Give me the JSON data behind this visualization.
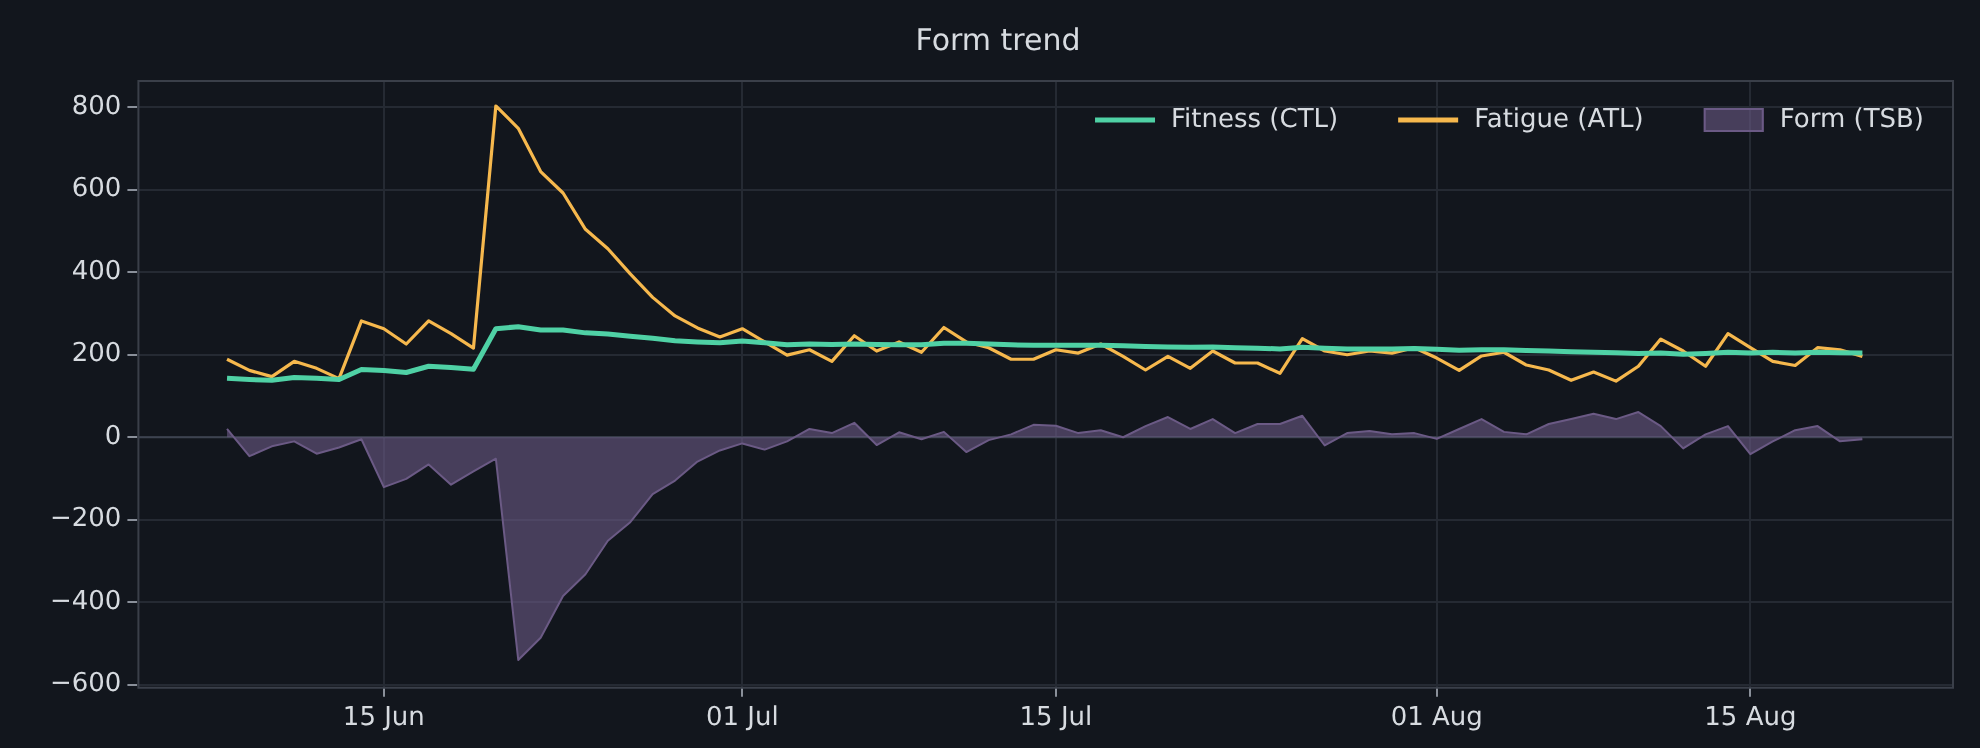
{
  "chart_data": {
    "type": "line",
    "title": "Form trend",
    "x": [
      "--06-08",
      "--06-09",
      "--06-10",
      "--06-11",
      "--06-12",
      "--06-13",
      "--06-14",
      "--06-15",
      "--06-16",
      "--06-17",
      "--06-18",
      "--06-19",
      "--06-20",
      "--06-21",
      "--06-22",
      "--06-23",
      "--06-24",
      "--06-25",
      "--06-26",
      "--06-27",
      "--06-28",
      "--06-29",
      "--06-30",
      "--07-01",
      "--07-02",
      "--07-03",
      "--07-04",
      "--07-05",
      "--07-06",
      "--07-07",
      "--07-08",
      "--07-09",
      "--07-10",
      "--07-11",
      "--07-12",
      "--07-13",
      "--07-14",
      "--07-15",
      "--07-16",
      "--07-17",
      "--07-18",
      "--07-19",
      "--07-20",
      "--07-21",
      "--07-22",
      "--07-23",
      "--07-24",
      "--07-25",
      "--07-26",
      "--07-27",
      "--07-28",
      "--07-29",
      "--07-30",
      "--07-31",
      "--08-01",
      "--08-02",
      "--08-03",
      "--08-04",
      "--08-05",
      "--08-06",
      "--08-07",
      "--08-08",
      "--08-09",
      "--08-10",
      "--08-11",
      "--08-12",
      "--08-13",
      "--08-14",
      "--08-15",
      "--08-16",
      "--08-17",
      "--08-18",
      "--08-19",
      "--08-20"
    ],
    "series": [
      {
        "name": "Form (TSB)",
        "type": "area",
        "color": "#6b5a85",
        "values": [
          20,
          -46,
          -22,
          -10,
          -40,
          -25,
          -5,
          -121,
          -101,
          -66,
          -115,
          -83,
          -52,
          -540,
          -486,
          -385,
          -332,
          -251,
          -206,
          -138,
          -105,
          -59,
          -32,
          -15,
          -30,
          -10,
          20,
          10,
          35,
          -19,
          12,
          -5,
          13,
          -36,
          -7,
          7,
          30,
          28,
          10,
          17,
          0,
          27,
          49,
          20,
          44,
          10,
          32,
          32,
          52,
          -20,
          10,
          15,
          7,
          10,
          -4,
          20,
          44,
          13,
          7,
          32,
          44,
          57,
          44,
          61,
          27,
          -27,
          7,
          27,
          -41,
          -10,
          17,
          27,
          -10,
          -5
        ]
      },
      {
        "name": "Fitness (CTL)",
        "type": "line",
        "color": "#4fd1a5",
        "values": [
          143,
          140,
          138,
          145,
          143,
          140,
          164,
          162,
          157,
          172,
          169,
          165,
          263,
          268,
          260,
          260,
          253,
          250,
          245,
          240,
          234,
          231,
          229,
          233,
          229,
          224,
          226,
          225,
          226,
          225,
          224,
          224,
          228,
          228,
          226,
          224,
          223,
          223,
          223,
          223,
          222,
          220,
          219,
          218,
          219,
          217,
          216,
          214,
          218,
          216,
          214,
          214,
          214,
          215,
          213,
          211,
          212,
          212,
          210,
          209,
          207,
          206,
          205,
          203,
          204,
          201,
          203,
          206,
          204,
          206,
          204,
          206,
          205,
          204
        ]
      },
      {
        "name": "Fatigue (ATL)",
        "type": "line",
        "color": "#f6b84d",
        "values": [
          189,
          162,
          147,
          184,
          167,
          142,
          282,
          263,
          226,
          282,
          251,
          216,
          803,
          749,
          644,
          592,
          504,
          457,
          396,
          339,
          294,
          265,
          243,
          263,
          231,
          199,
          212,
          184,
          246,
          209,
          231,
          206,
          266,
          231,
          217,
          189,
          189,
          212,
          204,
          226,
          196,
          163,
          196,
          167,
          209,
          180,
          180,
          155,
          239,
          209,
          200,
          209,
          204,
          217,
          192,
          162,
          197,
          206,
          175,
          163,
          138,
          158,
          136,
          172,
          238,
          209,
          172,
          251,
          217,
          184,
          174,
          217,
          212,
          196
        ]
      }
    ],
    "xlim": [
      "--06-04",
      "--08-24"
    ],
    "xticks": [
      {
        "value": "--06-15",
        "label": "15 Jun"
      },
      {
        "value": "--07-01",
        "label": "01 Jul"
      },
      {
        "value": "--07-15",
        "label": "15 Jul"
      },
      {
        "value": "--08-01",
        "label": "01 Aug"
      },
      {
        "value": "--08-15",
        "label": "15 Aug"
      }
    ],
    "ylim": [
      -605,
      866
    ],
    "yticks": [
      -600,
      -400,
      -200,
      0,
      200,
      400,
      600,
      800
    ],
    "ref_lines": [
      {
        "axis": "y",
        "value": 0,
        "color": "#3d4350"
      }
    ],
    "grid": true,
    "legend": "top right",
    "marker": "none"
  }
}
